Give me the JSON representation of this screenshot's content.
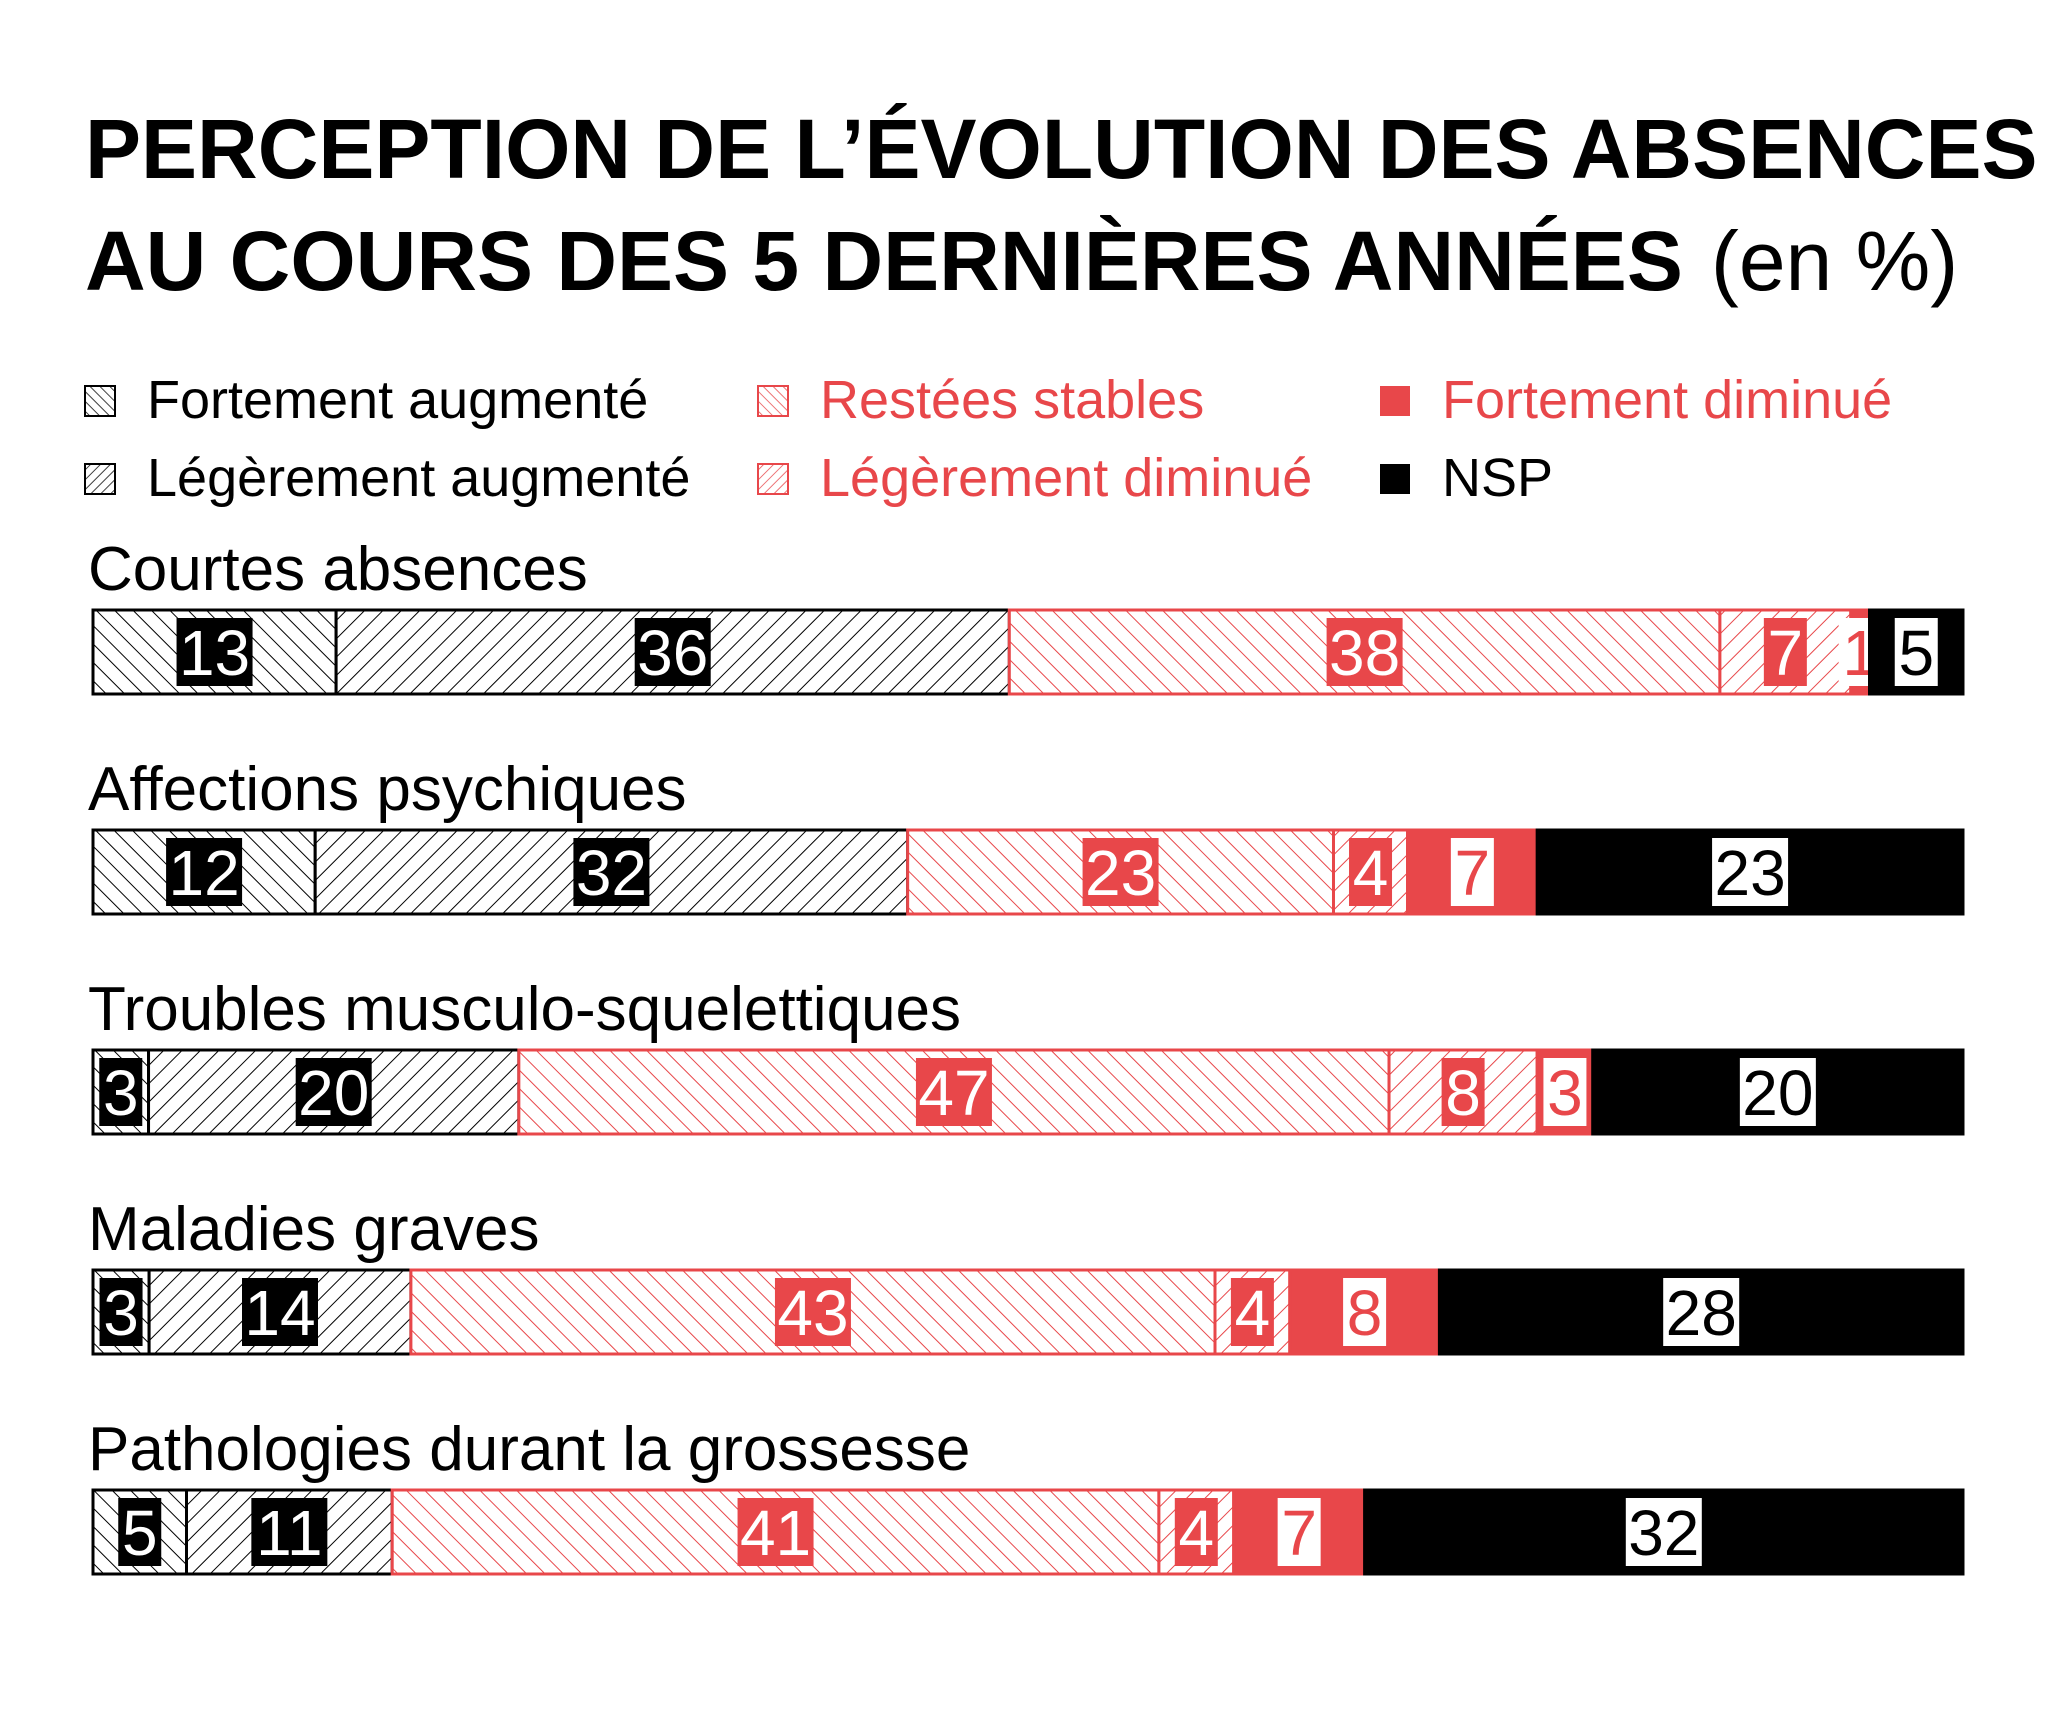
{
  "chart_data": {
    "type": "bar",
    "orientation": "horizontal",
    "stacked": true,
    "title": "PERCEPTION DE L’ÉVOLUTION DES ABSENCES",
    "title_line2": "AU COURS DES 5 DERNIÈRES ANNÉES",
    "title_unit": "(en %)",
    "legend_placement": "top",
    "categories": [
      "Courtes absences",
      "Affections psychiques",
      "Troubles musculo-squelettiques",
      "Maladies graves",
      "Pathologies durant la grossesse"
    ],
    "series": [
      {
        "name": "Fortement augmenté",
        "color": "#000000",
        "pattern": "hatch-down",
        "label_style": "black-box",
        "values": [
          13,
          12,
          3,
          3,
          5
        ]
      },
      {
        "name": "Légèrement augmenté",
        "color": "#000000",
        "pattern": "hatch-up",
        "label_style": "black-box",
        "values": [
          36,
          32,
          20,
          14,
          11
        ]
      },
      {
        "name": "Restées stables",
        "color": "#e8474a",
        "pattern": "hatch-down",
        "label_style": "red-box",
        "values": [
          38,
          23,
          47,
          43,
          41
        ]
      },
      {
        "name": "Légèrement diminué",
        "color": "#e8474a",
        "pattern": "hatch-up",
        "label_style": "red-box",
        "values": [
          7,
          4,
          8,
          4,
          4
        ]
      },
      {
        "name": "Fortement diminué",
        "color": "#e8474a",
        "pattern": "solid",
        "label_style": "white-box",
        "values": [
          1,
          7,
          3,
          8,
          7
        ]
      },
      {
        "name": "NSP",
        "color": "#000000",
        "pattern": "solid",
        "label_style": "white-box",
        "values": [
          5,
          23,
          20,
          28,
          32
        ]
      }
    ],
    "xlim": [
      0,
      100
    ],
    "grid": false
  }
}
